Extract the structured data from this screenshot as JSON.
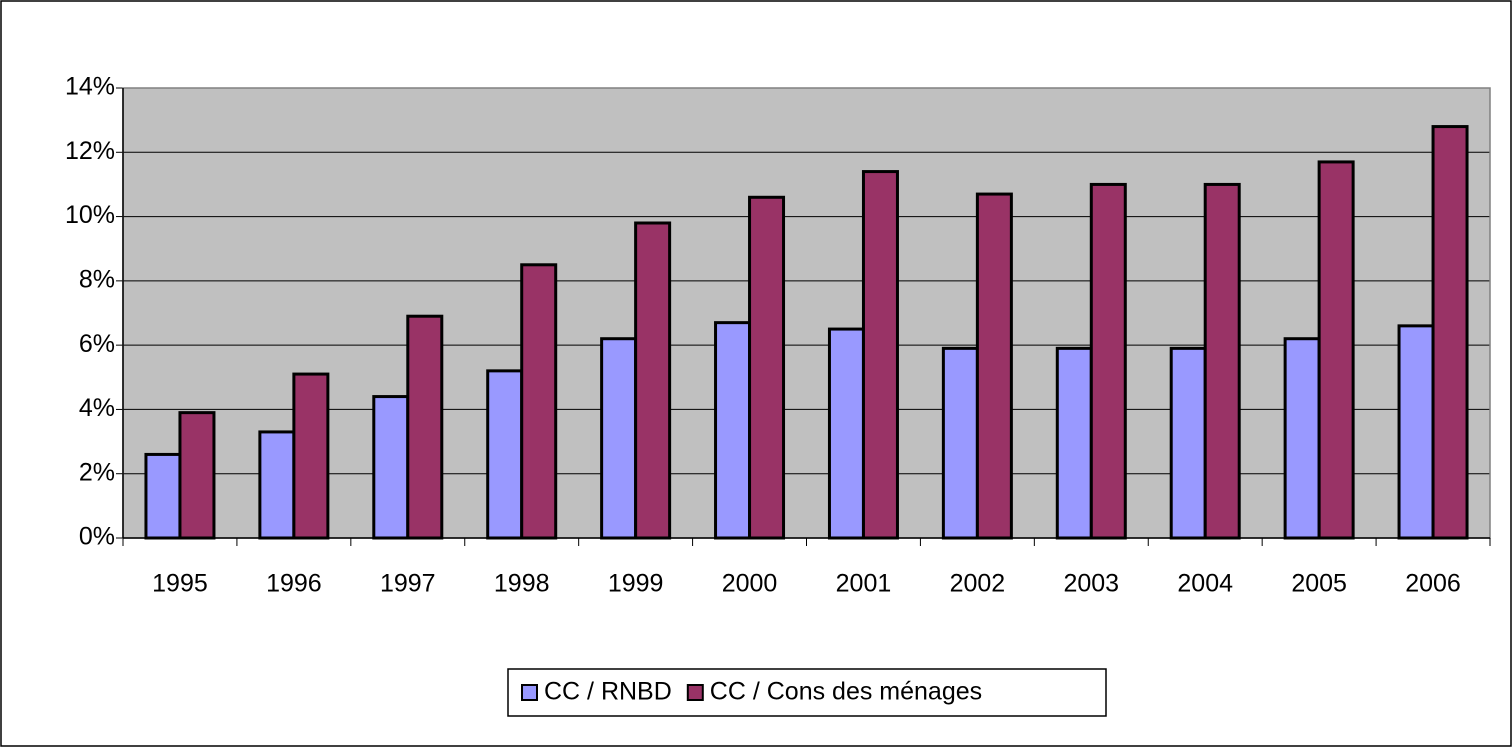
{
  "chart_data": {
    "type": "bar",
    "categories": [
      "1995",
      "1996",
      "1997",
      "1998",
      "1999",
      "2000",
      "2001",
      "2002",
      "2003",
      "2004",
      "2005",
      "2006"
    ],
    "series": [
      {
        "name": "CC / RNBD",
        "color": "#9999ff",
        "values": [
          2.6,
          3.3,
          4.4,
          5.2,
          6.2,
          6.7,
          6.5,
          5.9,
          5.9,
          5.9,
          6.2,
          6.6
        ]
      },
      {
        "name": "CC / Cons des ménages",
        "color": "#993366",
        "values": [
          3.9,
          5.1,
          6.9,
          8.5,
          9.8,
          10.6,
          11.4,
          10.7,
          11.0,
          11.0,
          11.7,
          12.8
        ]
      }
    ],
    "ylim": [
      0,
      14
    ],
    "yticks": [
      {
        "value": 0,
        "label": "0%"
      },
      {
        "value": 2,
        "label": "2%"
      },
      {
        "value": 4,
        "label": "4%"
      },
      {
        "value": 6,
        "label": "6%"
      },
      {
        "value": 8,
        "label": "8%"
      },
      {
        "value": 10,
        "label": "10%"
      },
      {
        "value": 12,
        "label": "12%"
      },
      {
        "value": 14,
        "label": "14%"
      }
    ],
    "grid": true,
    "background": "#c0c0c0",
    "legend": "bottom"
  }
}
